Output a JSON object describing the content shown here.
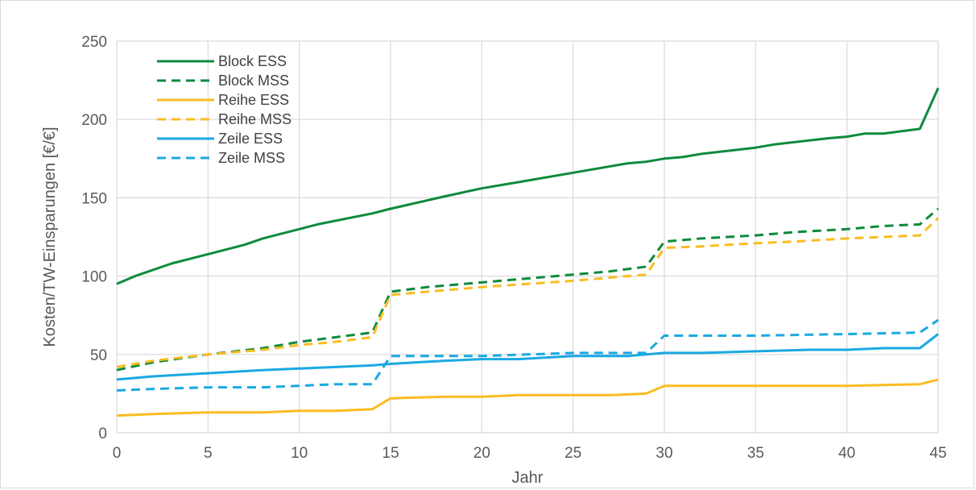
{
  "chart_data": {
    "type": "line",
    "title": "",
    "xlabel": "Jahr",
    "ylabel": "Kosten/TW-Einsparungen [€/€]",
    "xlim": [
      0,
      45
    ],
    "ylim": [
      0,
      250
    ],
    "xticks": [
      0,
      5,
      10,
      15,
      20,
      25,
      30,
      35,
      40,
      45
    ],
    "yticks": [
      0,
      50,
      100,
      150,
      200,
      250
    ],
    "grid": "vertical and horizontal major gridlines",
    "legend_position": "top-left",
    "series": [
      {
        "name": "Block ESS",
        "color": "#0e8a3c",
        "dash": "solid",
        "points": [
          [
            0,
            95
          ],
          [
            1,
            100
          ],
          [
            3,
            108
          ],
          [
            5,
            114
          ],
          [
            7,
            120
          ],
          [
            8,
            124
          ],
          [
            9,
            127
          ],
          [
            10,
            130
          ],
          [
            11,
            133
          ],
          [
            14,
            140
          ],
          [
            15,
            143
          ],
          [
            18,
            151
          ],
          [
            20,
            156
          ],
          [
            22,
            160
          ],
          [
            25,
            166
          ],
          [
            28,
            172
          ],
          [
            29,
            173
          ],
          [
            30,
            175
          ],
          [
            31,
            176
          ],
          [
            32,
            178
          ],
          [
            35,
            182
          ],
          [
            36,
            184
          ],
          [
            39,
            188
          ],
          [
            40,
            189
          ],
          [
            41,
            191
          ],
          [
            42,
            191
          ],
          [
            44,
            194
          ],
          [
            45,
            220
          ]
        ]
      },
      {
        "name": "Block MSS",
        "color": "#0e8a3c",
        "dash": "dashed",
        "points": [
          [
            0,
            40
          ],
          [
            2,
            45
          ],
          [
            5,
            50
          ],
          [
            8,
            54
          ],
          [
            10,
            58
          ],
          [
            12,
            61
          ],
          [
            14,
            64
          ],
          [
            15,
            90
          ],
          [
            17,
            93
          ],
          [
            20,
            96
          ],
          [
            25,
            101
          ],
          [
            27,
            103
          ],
          [
            29,
            106
          ],
          [
            30,
            122
          ],
          [
            32,
            124
          ],
          [
            35,
            126
          ],
          [
            37,
            128
          ],
          [
            40,
            130
          ],
          [
            42,
            132
          ],
          [
            44,
            133
          ],
          [
            45,
            143
          ]
        ]
      },
      {
        "name": "Reihe ESS",
        "color": "#fbbc22",
        "dash": "solid",
        "points": [
          [
            0,
            11
          ],
          [
            2,
            12
          ],
          [
            5,
            13
          ],
          [
            8,
            13
          ],
          [
            10,
            14
          ],
          [
            12,
            14
          ],
          [
            14,
            15
          ],
          [
            15,
            22
          ],
          [
            18,
            23
          ],
          [
            20,
            23
          ],
          [
            22,
            24
          ],
          [
            25,
            24
          ],
          [
            27,
            24
          ],
          [
            29,
            25
          ],
          [
            30,
            30
          ],
          [
            35,
            30
          ],
          [
            40,
            30
          ],
          [
            44,
            31
          ],
          [
            45,
            34
          ]
        ]
      },
      {
        "name": "Reihe MSS",
        "color": "#fbbc22",
        "dash": "dashed",
        "points": [
          [
            0,
            42
          ],
          [
            2,
            46
          ],
          [
            5,
            50
          ],
          [
            8,
            53
          ],
          [
            10,
            56
          ],
          [
            12,
            58
          ],
          [
            14,
            61
          ],
          [
            15,
            88
          ],
          [
            18,
            91
          ],
          [
            20,
            93
          ],
          [
            25,
            97
          ],
          [
            27,
            99
          ],
          [
            29,
            101
          ],
          [
            30,
            118
          ],
          [
            32,
            119
          ],
          [
            35,
            121
          ],
          [
            37,
            122
          ],
          [
            40,
            124
          ],
          [
            42,
            125
          ],
          [
            44,
            126
          ],
          [
            45,
            137
          ]
        ]
      },
      {
        "name": "Zeile ESS",
        "color": "#1aa9e2",
        "dash": "solid",
        "points": [
          [
            0,
            34
          ],
          [
            2,
            36
          ],
          [
            5,
            38
          ],
          [
            8,
            40
          ],
          [
            10,
            41
          ],
          [
            12,
            42
          ],
          [
            14,
            43
          ],
          [
            15,
            44
          ],
          [
            18,
            46
          ],
          [
            20,
            47
          ],
          [
            22,
            47
          ],
          [
            25,
            49
          ],
          [
            28,
            49
          ],
          [
            30,
            51
          ],
          [
            32,
            51
          ],
          [
            35,
            52
          ],
          [
            38,
            53
          ],
          [
            40,
            53
          ],
          [
            42,
            54
          ],
          [
            44,
            54
          ],
          [
            45,
            63
          ]
        ]
      },
      {
        "name": "Zeile MSS",
        "color": "#1aa9e2",
        "dash": "dashed",
        "points": [
          [
            0,
            27
          ],
          [
            2,
            28
          ],
          [
            5,
            29
          ],
          [
            8,
            29
          ],
          [
            10,
            30
          ],
          [
            12,
            31
          ],
          [
            14,
            31
          ],
          [
            15,
            49
          ],
          [
            20,
            49
          ],
          [
            25,
            51
          ],
          [
            29,
            51
          ],
          [
            30,
            62
          ],
          [
            35,
            62
          ],
          [
            40,
            63
          ],
          [
            44,
            64
          ],
          [
            45,
            72
          ]
        ]
      }
    ]
  }
}
